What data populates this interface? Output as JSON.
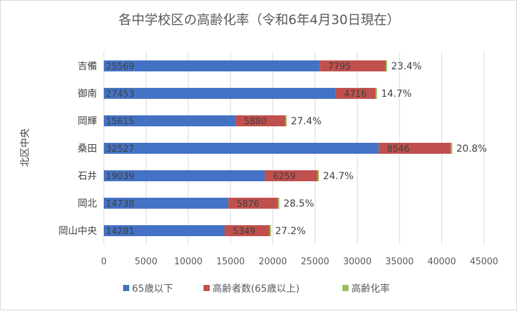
{
  "chart_data": {
    "type": "bar",
    "orientation": "horizontal",
    "stacked": true,
    "title": "各中学校区の高齢化率（令和6年4月30日現在）",
    "ylabel": "北区中央",
    "xlabel": "",
    "xlim": [
      0,
      45000
    ],
    "xticks": [
      0,
      5000,
      10000,
      15000,
      20000,
      25000,
      30000,
      35000,
      40000,
      45000
    ],
    "grid": true,
    "legend_position": "bottom",
    "categories": [
      "吉備",
      "御南",
      "岡輝",
      "桑田",
      "石井",
      "岡北",
      "岡山中央"
    ],
    "series": [
      {
        "name": "65歳以下",
        "color": "#4472c4",
        "values": [
          25569,
          27453,
          15615,
          32527,
          19039,
          14738,
          14281
        ]
      },
      {
        "name": "高齢者数(65歳以上)",
        "color": "#c0504d",
        "values": [
          7795,
          4716,
          5880,
          8546,
          6259,
          5876,
          5349
        ]
      },
      {
        "name": "高齢化率",
        "color": "#9bbb59",
        "values": [
          "23.4%",
          "14.7%",
          "27.4%",
          "20.8%",
          "24.7%",
          "28.5%",
          "27.2%"
        ]
      }
    ]
  }
}
